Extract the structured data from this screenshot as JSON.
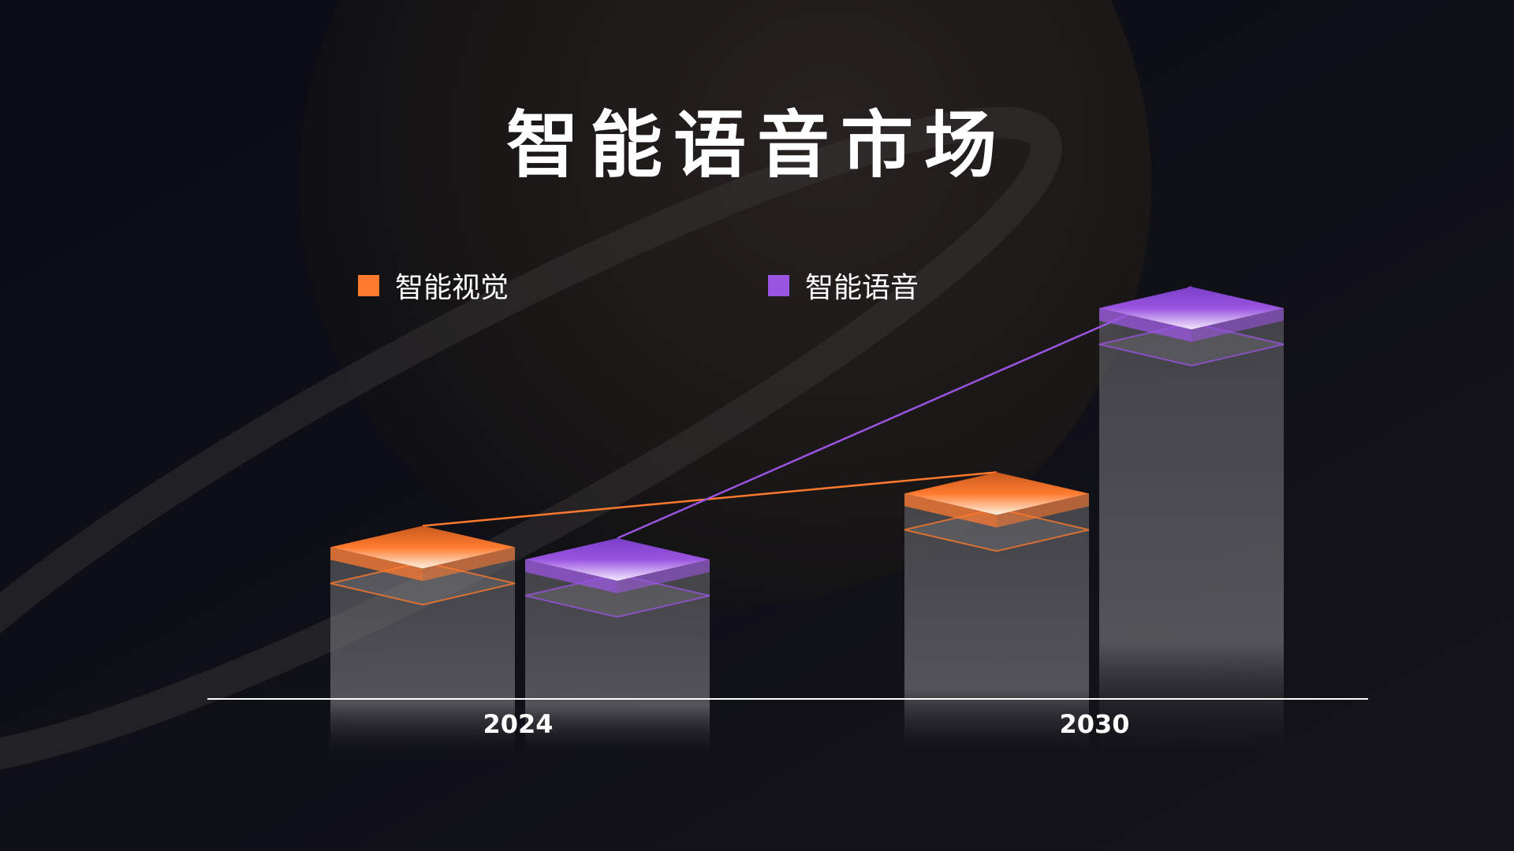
{
  "chart_data": {
    "type": "bar",
    "title": "智能语音市场",
    "categories": [
      "2024",
      "2030"
    ],
    "series": [
      {
        "name": "智能视觉",
        "color": "#ff7a2f",
        "values": [
          42,
          55
        ]
      },
      {
        "name": "智能语音",
        "color": "#9a55e0",
        "values": [
          39,
          100
        ]
      }
    ],
    "ylim": [
      0,
      100
    ],
    "grid": false,
    "legend_position": "top-left",
    "trend_lines": true
  },
  "colors": {
    "background": "#0c0c12",
    "axis": "#ffffff"
  }
}
